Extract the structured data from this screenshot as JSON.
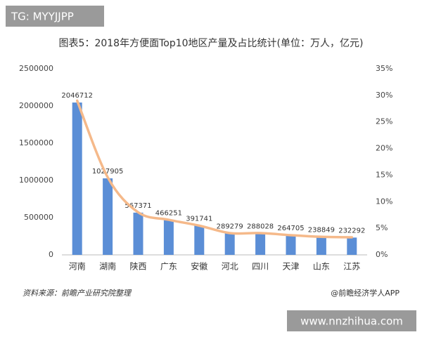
{
  "chart_data": {
    "type": "bar-line",
    "title": "图表5：2018年方便面Top10地区产量及占比统计(单位：万人，亿元)",
    "categories": [
      "河南",
      "湖南",
      "陕西",
      "广东",
      "安徽",
      "河北",
      "四川",
      "天津",
      "山东",
      "江苏"
    ],
    "series": [
      {
        "type": "bar",
        "color": "#5b8ed6",
        "values": [
          2046712,
          1027905,
          567371,
          466251,
          391741,
          289279,
          288028,
          264705,
          238849,
          232292
        ]
      },
      {
        "type": "line",
        "color": "#f5b98a",
        "axis": "y2",
        "values": [
          29,
          14.6,
          8,
          6.6,
          5.5,
          4.1,
          4.1,
          3.7,
          3.4,
          3.3
        ]
      }
    ],
    "ylim": [
      0,
      2500000
    ],
    "yticks": [
      0,
      500000,
      1000000,
      1500000,
      2000000,
      2500000
    ],
    "y2lim": [
      0,
      35
    ],
    "y2ticks": [
      {
        "value": 0,
        "label": "0%"
      },
      {
        "value": 5,
        "label": "5%"
      },
      {
        "value": 10,
        "label": "10%"
      },
      {
        "value": 15,
        "label": "15%"
      },
      {
        "value": 20,
        "label": "20%"
      },
      {
        "value": 25,
        "label": "25%"
      },
      {
        "value": 30,
        "label": "30%"
      },
      {
        "value": 35,
        "label": "35%"
      }
    ],
    "source": "资料来源：前瞻产业研究院整理",
    "brand": "@前瞻经济学人APP",
    "watermark_top": "TG: MYYJJPP",
    "watermark_bottom": "www.nnzhihua.com"
  }
}
